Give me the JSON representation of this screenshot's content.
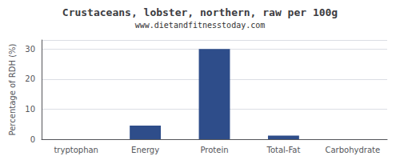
{
  "chart_data": {
    "type": "bar",
    "title": "Crustaceans, lobster, northern, raw per 100g",
    "subtitle": "www.dietandfitnesstoday.com",
    "categories": [
      "tryptophan",
      "Energy",
      "Protein",
      "Total-Fat",
      "Carbohydrate"
    ],
    "values": [
      0,
      4.5,
      30,
      1.2,
      0
    ],
    "color": "#2e4d8a",
    "ylabel": "Percentage of RDH (%)",
    "ylim": [
      0,
      33
    ],
    "yticks": [
      0,
      10,
      20,
      30
    ],
    "grid": true
  }
}
